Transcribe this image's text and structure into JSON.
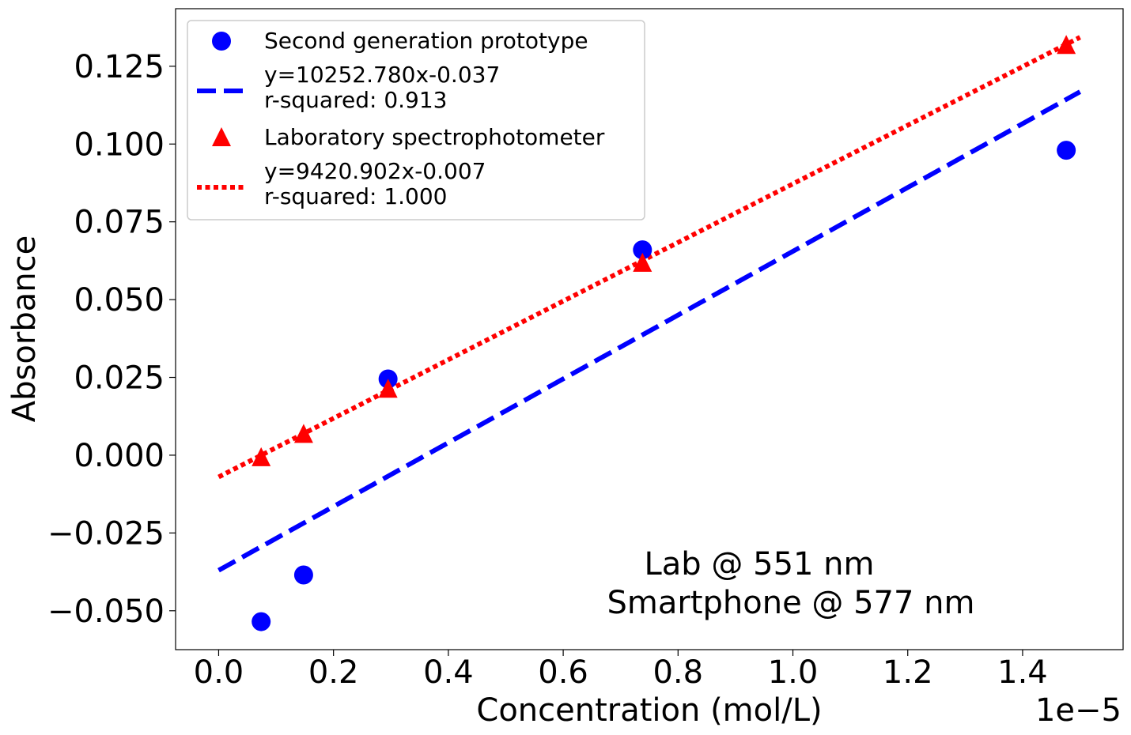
{
  "chart_data": {
    "type": "scatter",
    "title": "",
    "xlabel": "Concentration (mol/L)",
    "ylabel": "Absorbance",
    "x_offset_label": "1e−5",
    "xlim": [
      -0.075,
      1.575
    ],
    "ylim": [
      -0.0625,
      0.1435
    ],
    "x_ticks": [
      0.0,
      0.2,
      0.4,
      0.6,
      0.8,
      1.0,
      1.2,
      1.4
    ],
    "x_tick_labels": [
      "0.0",
      "0.2",
      "0.4",
      "0.6",
      "0.8",
      "1.0",
      "1.2",
      "1.4"
    ],
    "y_ticks": [
      -0.05,
      -0.025,
      0.0,
      0.025,
      0.05,
      0.075,
      0.1,
      0.125
    ],
    "y_tick_labels": [
      "−0.050",
      "−0.025",
      "0.000",
      "0.025",
      "0.050",
      "0.075",
      "0.100",
      "0.125"
    ],
    "grid": false,
    "legend_position": "top-left",
    "series": [
      {
        "name": "Second generation prototype",
        "kind": "scatter",
        "marker": "circle",
        "color": "#0000ff",
        "x": [
          0.074,
          0.148,
          0.295,
          0.738,
          1.476
        ],
        "y": [
          -0.0535,
          -0.0385,
          0.0245,
          0.066,
          0.098
        ]
      },
      {
        "name": "y=10252.780x-0.037\nr-squared: 0.913",
        "kind": "line",
        "style": "dashed",
        "color": "#0000ff",
        "x": [
          0.0,
          1.5
        ],
        "y": [
          -0.037,
          0.1168
        ]
      },
      {
        "name": "Laboratory spectrophotometer",
        "kind": "scatter",
        "marker": "triangle",
        "color": "#ff0000",
        "x": [
          0.074,
          0.148,
          0.295,
          0.738,
          1.476
        ],
        "y": [
          -0.0005,
          0.007,
          0.0215,
          0.062,
          0.132
        ]
      },
      {
        "name": "y=9420.902x-0.007\nr-squared: 1.000",
        "kind": "line",
        "style": "dotted",
        "color": "#ff0000",
        "x": [
          0.0,
          1.5
        ],
        "y": [
          -0.007,
          0.1343
        ]
      }
    ],
    "annotations": [
      "Lab @ 551 nm",
      "Smartphone @ 577 nm"
    ]
  }
}
